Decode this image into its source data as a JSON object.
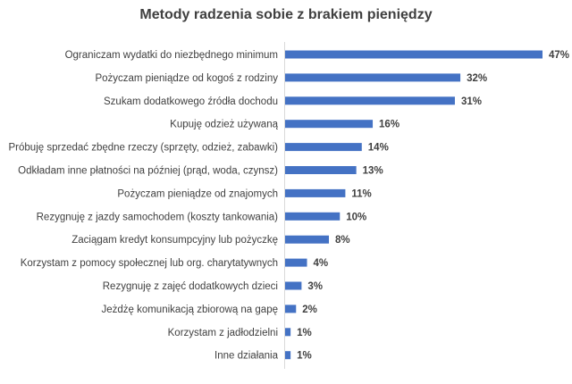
{
  "chart_data": {
    "type": "bar",
    "orientation": "horizontal",
    "title": "Metody radzenia sobie z brakiem pieniędzy",
    "categories": [
      "Ograniczam wydatki do niezbędnego minimum",
      "Pożyczam pieniądze od kogoś z rodziny",
      "Szukam dodatkowego źródła dochodu",
      "Kupuję odzież używaną",
      "Próbuję sprzedać zbędne rzeczy (sprzęty, odzież, zabawki)",
      "Odkładam inne płatności na później (prąd, woda, czynsz)",
      "Pożyczam pieniądze od znajomych",
      "Rezygnuję z jazdy samochodem (koszty tankowania)",
      "Zaciągam kredyt konsumpcyjny lub pożyczkę",
      "Korzystam z pomocy społecznej lub org. charytatywnych",
      "Rezygnuję z zajęć dodatkowych dzieci",
      "Jeżdżę komunikacją zbiorową na gapę",
      "Korzystam z jadłodzielni",
      "Inne działania"
    ],
    "values": [
      47,
      32,
      31,
      16,
      14,
      13,
      11,
      10,
      8,
      4,
      3,
      2,
      1,
      1
    ],
    "value_labels": [
      "47%",
      "32%",
      "31%",
      "16%",
      "14%",
      "13%",
      "11%",
      "10%",
      "8%",
      "4%",
      "3%",
      "2%",
      "1%",
      "1%"
    ],
    "unit": "%",
    "xlim": [
      0,
      47
    ],
    "grid": false,
    "bar_color": "#4472C4"
  }
}
